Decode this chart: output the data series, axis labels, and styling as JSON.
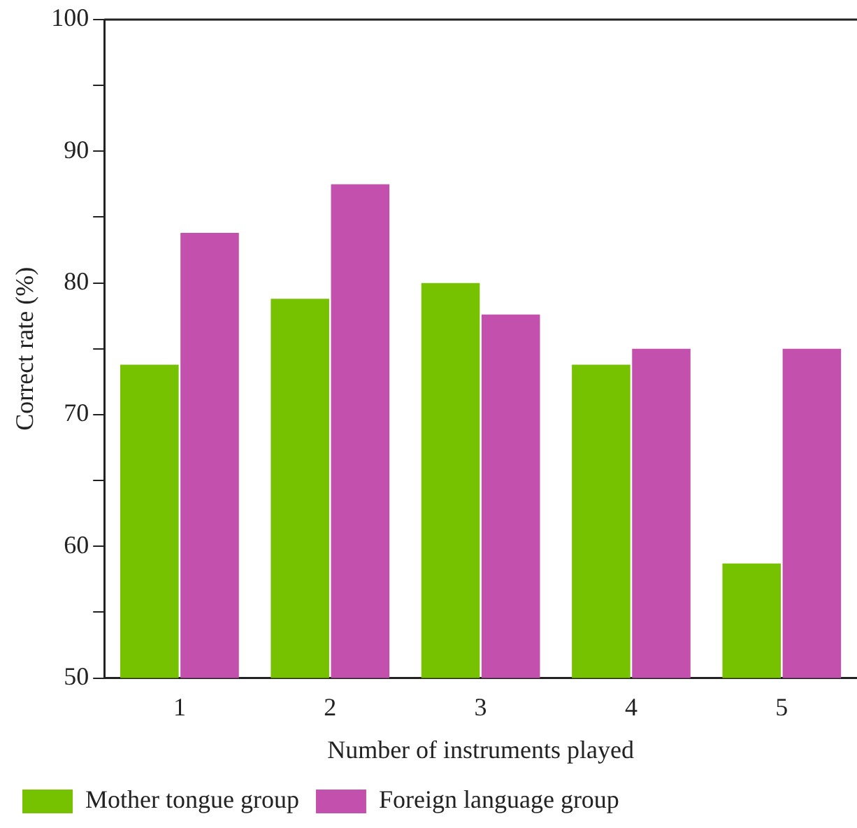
{
  "chart_data": {
    "type": "bar",
    "xlabel": "Number of instruments played",
    "ylabel": "Correct rate (%)",
    "categories": [
      "1",
      "2",
      "3",
      "4",
      "5"
    ],
    "series": [
      {
        "name": "Mother tongue group",
        "color": "#76c200",
        "values": [
          73.8,
          78.8,
          80.0,
          73.8,
          58.7
        ]
      },
      {
        "name": "Foreign language group",
        "color": "#c450ad",
        "values": [
          83.8,
          87.5,
          77.6,
          75.0,
          75.0
        ]
      }
    ],
    "ylim": [
      50,
      100
    ],
    "yticks": [
      50,
      60,
      70,
      80,
      90,
      100
    ],
    "grid": false,
    "legend": "bottom left"
  }
}
